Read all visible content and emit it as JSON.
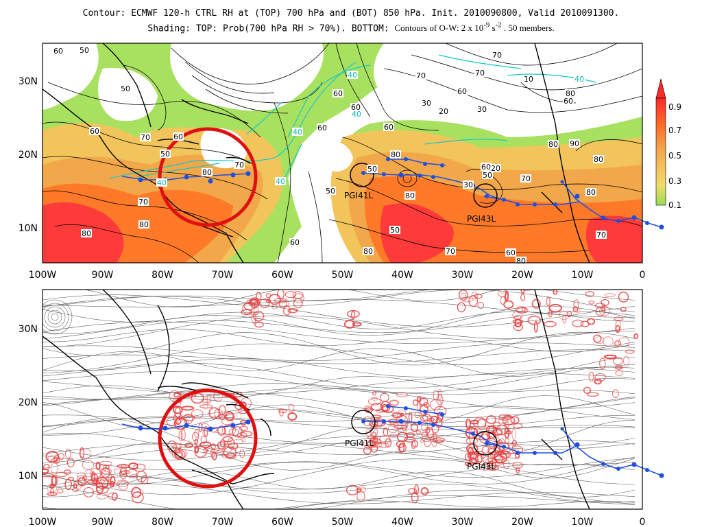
{
  "title": {
    "line1": "Contour: ECMWF 120-h CTRL RH at (TOP) 700 hPa and (BOT) 850 hPa. Init. 2010090800, Valid 2010091300.",
    "line2a": "Shading: TOP: Prob(700 hPa RH > 70%).  BOTTOM:",
    "line2b": "Contours of O-W: 2 x 10",
    "line2exp1": "-9",
    "line2c": " s",
    "line2exp2": "-2",
    "line2d": "  .  50 members."
  },
  "top_panel": {
    "lon_labels": [
      "100W",
      "90W",
      "80W",
      "70W",
      "60W",
      "50W",
      "40W",
      "30W",
      "20W",
      "10W",
      "0"
    ],
    "lat_labels": [
      "30N",
      "20N",
      "10N"
    ],
    "colorbar": {
      "ticks": [
        "0.9",
        "0.7",
        "0.5",
        "0.3",
        "0.1"
      ],
      "colors": [
        "#ff3a3a",
        "#ff7a28",
        "#f2a84a",
        "#f2c55c",
        "#eed36a",
        "#a8e060"
      ]
    },
    "contour_labels": [
      "60",
      "50",
      "50",
      "60",
      "70",
      "50",
      "40",
      "80",
      "70",
      "60",
      "70",
      "80",
      "80",
      "60",
      "40",
      "40",
      "50",
      "40",
      "60",
      "60",
      "60",
      "80",
      "50",
      "30",
      "20",
      "30",
      "10",
      "40",
      "80",
      "50",
      "80",
      "70",
      "60",
      "80",
      "70",
      "70",
      "80",
      "90",
      "80",
      "80",
      "60",
      "70",
      "80",
      "60",
      "20",
      "30",
      "50",
      "60",
      "70",
      "70",
      "40",
      "60"
    ]
  },
  "bottom_panel": {
    "lon_labels": [
      "100W",
      "90W",
      "80W",
      "70W",
      "60W",
      "50W",
      "40W",
      "30W",
      "20W",
      "10W",
      "0"
    ],
    "lat_labels": [
      "30N",
      "20N",
      "10N"
    ]
  },
  "storms": [
    {
      "name": "PGI41L"
    },
    {
      "name": "PGI43L"
    }
  ],
  "colors": {
    "track": "#1f4fe0",
    "highlight_circle": "#e01010",
    "ow_contours": "#e84040",
    "storm_circle": "#000000"
  }
}
